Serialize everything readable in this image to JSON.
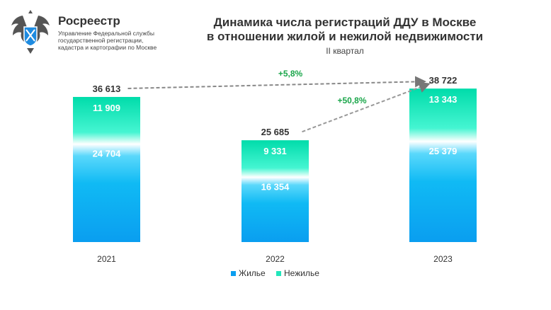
{
  "header": {
    "org_name": "Росреестр",
    "org_sub": [
      "Управление Федеральной службы",
      "государственной регистрации,",
      "кадастра и картографии по Москве"
    ],
    "logo": "double-headed-eagle-emblem"
  },
  "chart_data": {
    "type": "bar",
    "stacked": true,
    "title": [
      "Динамика числа регистраций ДДУ в Москве",
      "в отношении жилой и нежилой недвижимости"
    ],
    "subtitle": "II квартал",
    "categories": [
      "2021",
      "2022",
      "2023"
    ],
    "series": [
      {
        "name": "Жилье",
        "values": [
          24704,
          16354,
          25379
        ],
        "labels": [
          "24 704",
          "16 354",
          "25 379"
        ],
        "color": "#00b4f0"
      },
      {
        "name": "Нежилье",
        "values": [
          11909,
          9331,
          13343
        ],
        "labels": [
          "11 909",
          "9 331",
          "13 343"
        ],
        "color": "#22e6bb"
      }
    ],
    "totals": [
      36613,
      25685,
      38722
    ],
    "total_labels": [
      "36 613",
      "25 685",
      "38 722"
    ],
    "annotations": [
      {
        "from": "2021",
        "to": "2023",
        "text": "+5,8%"
      },
      {
        "from": "2022",
        "to": "2023",
        "text": "+50,8%"
      }
    ],
    "annotation_color": "#1aa64a",
    "legend_position": "bottom",
    "grid": false
  }
}
